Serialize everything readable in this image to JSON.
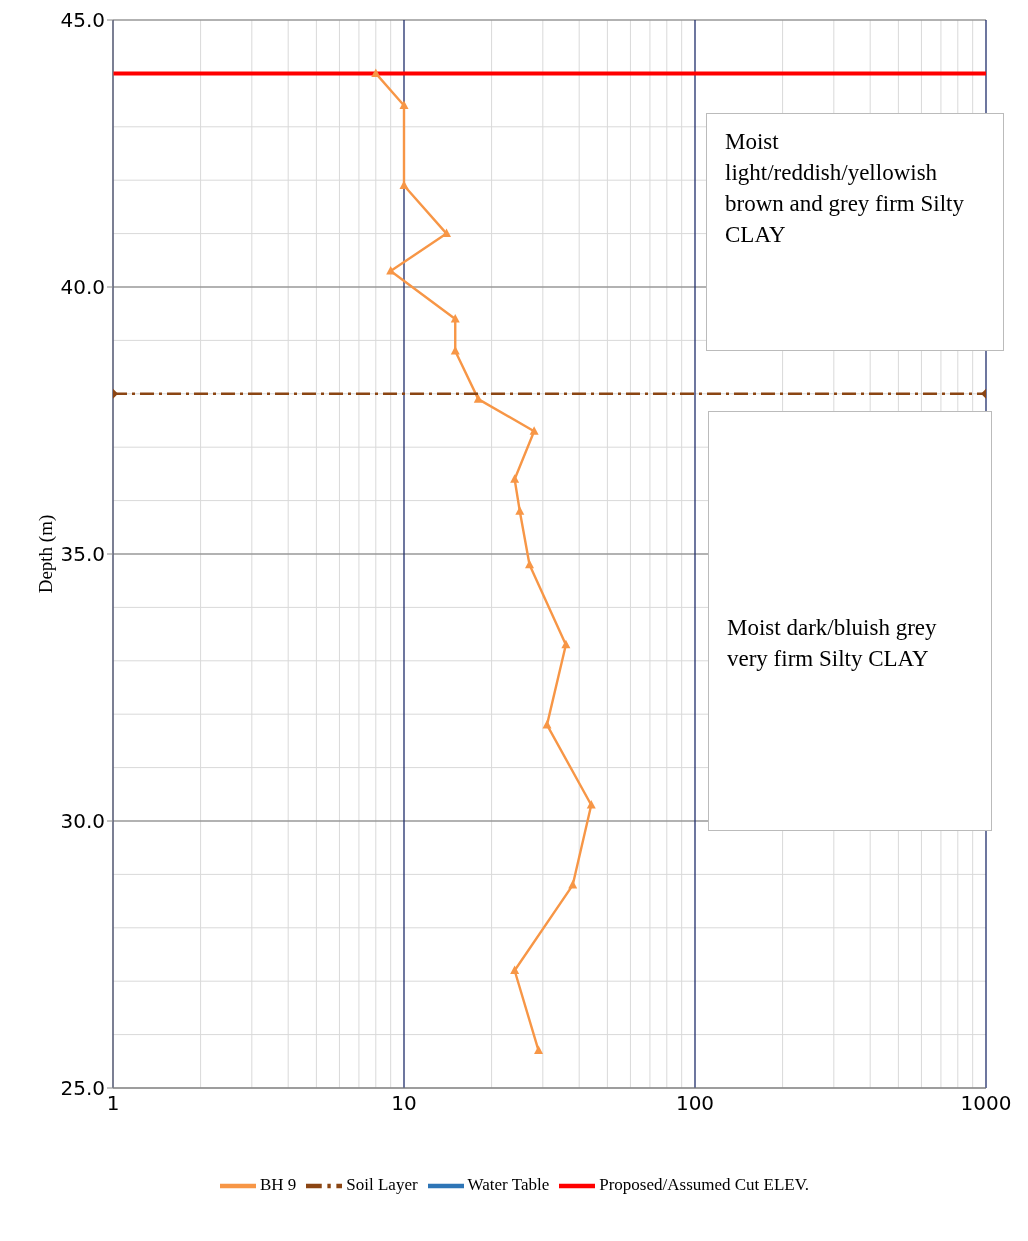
{
  "chart_data": {
    "type": "line",
    "ylabel": "Depth (m)",
    "log": "x",
    "xlim": [
      1,
      1000
    ],
    "xticks": [
      1,
      10,
      100,
      1000
    ],
    "ylim": [
      25,
      45
    ],
    "yticks": [
      {
        "value": 25,
        "label": "25.0"
      },
      {
        "value": 30,
        "label": "30.0"
      },
      {
        "value": 35,
        "label": "35.0"
      },
      {
        "value": 40,
        "label": "40.0"
      },
      {
        "value": 45,
        "label": "45.0"
      }
    ],
    "grid": true,
    "legend": "bottom",
    "series": [
      {
        "name": "BH 9",
        "color": "#f79646",
        "marker": "triangle",
        "line_style": "solid",
        "x": [
          8,
          10,
          10,
          14,
          9,
          15,
          15,
          18,
          28,
          24,
          25,
          27,
          36,
          31,
          44,
          38,
          24,
          29
        ],
        "values": [
          44.0,
          43.4,
          41.9,
          41.0,
          40.3,
          39.4,
          38.8,
          37.9,
          37.3,
          36.4,
          35.8,
          34.8,
          33.3,
          31.8,
          30.3,
          28.8,
          27.2,
          25.7
        ]
      },
      {
        "name": "Soil Layer",
        "color": "#8b4513",
        "marker": "diamond",
        "line_style": "dashed",
        "x": [
          1,
          1000
        ],
        "values": [
          38,
          38
        ]
      },
      {
        "name": "Water Table",
        "color": "#2e75b6",
        "marker": "diamond",
        "line_style": "solid"
      },
      {
        "name": "Proposed/Assumed Cut ELEV.",
        "color": "#ff0000",
        "marker": "none",
        "line_style": "solid",
        "x": [
          1,
          1000
        ],
        "values": [
          44,
          44
        ]
      }
    ],
    "annotations": [
      "Moist light/reddish/yellowish brown  and grey firm Silty CLAY",
      "Moist dark/bluish grey very firm Silty CLAY"
    ]
  }
}
